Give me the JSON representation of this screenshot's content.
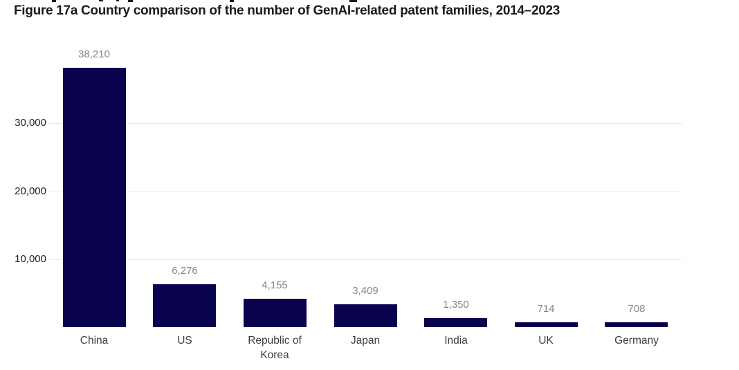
{
  "title": "Figure 17a Country comparison of the number of GenAI-related patent families, 2014–2023",
  "chart_data": {
    "type": "bar",
    "title": "Figure 17a Country comparison of the number of GenAI-related patent families, 2014–2023",
    "categories": [
      "China",
      "US",
      "Republic of Korea",
      "Japan",
      "India",
      "UK",
      "Germany"
    ],
    "values": [
      38210,
      6276,
      4155,
      3409,
      1350,
      714,
      708
    ],
    "value_labels": [
      "38,210",
      "6,276",
      "4,155",
      "3,409",
      "1,350",
      "714",
      "708"
    ],
    "xlabel": "",
    "ylabel": "",
    "ylim": [
      0,
      40000
    ],
    "yticks": [
      {
        "value": 10000,
        "label": "10,000"
      },
      {
        "value": 20000,
        "label": "20,000"
      },
      {
        "value": 30000,
        "label": "30,000"
      }
    ],
    "grid": "horizontal",
    "legend": "none",
    "colors": {
      "bar": "#08024f",
      "gridline": "#e8e8e8",
      "value_label": "#858585",
      "tick_label": "#212121",
      "category_label": "#3d3d3d",
      "title": "#1b1b1b"
    }
  }
}
